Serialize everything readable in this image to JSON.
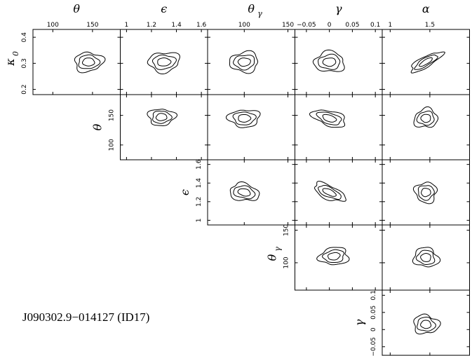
{
  "chart_data": {
    "type": "contour-corner-plot",
    "caption": "J090302.9−014127 (ID17)",
    "params": {
      "kappa0": {
        "symbol": "κ",
        "subscript": "0",
        "range": [
          0.18,
          0.43
        ],
        "ticks": [
          0.2,
          0.3,
          0.4
        ],
        "tick_labels": [
          "0.2",
          "0.3",
          "0.4"
        ]
      },
      "theta": {
        "symbol": "θ",
        "subscript": "",
        "range": [
          75,
          185
        ],
        "ticks": [
          100,
          150
        ],
        "tick_labels": [
          "100",
          "150"
        ]
      },
      "epsilon": {
        "symbol": "ϵ",
        "subscript": "",
        "range": [
          0.95,
          1.65
        ],
        "ticks": [
          1.0,
          1.2,
          1.4,
          1.6
        ],
        "tick_labels": [
          "1",
          "1.2",
          "1.4",
          "1.6"
        ]
      },
      "theta_gamma": {
        "symbol": "θ",
        "subscript": "γ",
        "range": [
          58,
          158
        ],
        "ticks": [
          100,
          150
        ],
        "tick_labels": [
          "100",
          "150"
        ]
      },
      "gamma": {
        "symbol": "γ",
        "subscript": "",
        "range": [
          -0.075,
          0.115
        ],
        "ticks": [
          -0.05,
          0,
          0.05,
          0.1
        ],
        "tick_labels": [
          "−0.05",
          "0",
          "0.05",
          "0.1"
        ]
      },
      "alpha": {
        "symbol": "α",
        "subscript": "",
        "range": [
          0.9,
          2.0
        ],
        "ticks": [
          1.0,
          1.5
        ],
        "tick_labels": [
          "1",
          "1.5"
        ]
      }
    },
    "columns": [
      "theta",
      "epsilon",
      "theta_gamma",
      "gamma",
      "alpha"
    ],
    "rows": [
      "kappa0",
      "theta",
      "epsilon",
      "theta_gamma",
      "gamma"
    ],
    "panels": [
      {
        "row": 0,
        "col": 0,
        "center": [
          145,
          0.305
        ],
        "spread": [
          0.32,
          0.3
        ],
        "tilt": 0
      },
      {
        "row": 0,
        "col": 1,
        "center": [
          1.3,
          0.305
        ],
        "spread": [
          0.36,
          0.3
        ],
        "tilt": 0
      },
      {
        "row": 0,
        "col": 2,
        "center": [
          100,
          0.305
        ],
        "spread": [
          0.34,
          0.3
        ],
        "tilt": 0
      },
      {
        "row": 0,
        "col": 3,
        "center": [
          0.0,
          0.305
        ],
        "spread": [
          0.36,
          0.3
        ],
        "tilt": 0
      },
      {
        "row": 0,
        "col": 4,
        "center": [
          1.45,
          0.305
        ],
        "spread": [
          0.42,
          0.16
        ],
        "tilt": 0.55
      },
      {
        "row": 1,
        "col": 1,
        "center": [
          1.28,
          147
        ],
        "spread": [
          0.3,
          0.26
        ],
        "tilt": 0.1
      },
      {
        "row": 1,
        "col": 2,
        "center": [
          100,
          145
        ],
        "spread": [
          0.34,
          0.28
        ],
        "tilt": 0.05
      },
      {
        "row": 1,
        "col": 3,
        "center": [
          0.0,
          145
        ],
        "spread": [
          0.38,
          0.24
        ],
        "tilt": -0.3
      },
      {
        "row": 1,
        "col": 4,
        "center": [
          1.45,
          145
        ],
        "spread": [
          0.26,
          0.3
        ],
        "tilt": 0
      },
      {
        "row": 2,
        "col": 2,
        "center": [
          100,
          1.3
        ],
        "spread": [
          0.34,
          0.26
        ],
        "tilt": -0.25
      },
      {
        "row": 2,
        "col": 3,
        "center": [
          0.0,
          1.3
        ],
        "spread": [
          0.4,
          0.2
        ],
        "tilt": -0.45
      },
      {
        "row": 2,
        "col": 4,
        "center": [
          1.45,
          1.3
        ],
        "spread": [
          0.26,
          0.3
        ],
        "tilt": 0
      },
      {
        "row": 3,
        "col": 3,
        "center": [
          0.01,
          110
        ],
        "spread": [
          0.34,
          0.26
        ],
        "tilt": 0.15
      },
      {
        "row": 3,
        "col": 4,
        "center": [
          1.45,
          108
        ],
        "spread": [
          0.28,
          0.3
        ],
        "tilt": 0
      },
      {
        "row": 4,
        "col": 4,
        "center": [
          1.45,
          0.015
        ],
        "spread": [
          0.28,
          0.3
        ],
        "tilt": 0
      }
    ],
    "contour_levels": [
      "68%",
      "95%",
      "99%"
    ]
  }
}
